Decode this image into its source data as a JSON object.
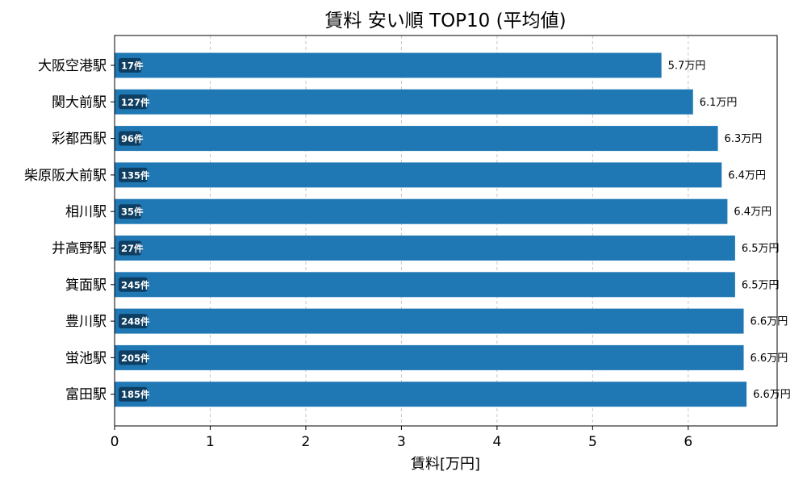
{
  "chart_data": {
    "type": "bar",
    "orientation": "horizontal",
    "title": "賃料 安い順 TOP10 (平均値)",
    "xlabel": "賃料[万円]",
    "ylabel": "",
    "xlim": [
      0,
      6.93
    ],
    "xticks": [
      0,
      1,
      2,
      3,
      4,
      5,
      6
    ],
    "grid": "x-dashed",
    "bar_color": "#1f77b4",
    "badge_color": "#0e3f63",
    "value_suffix": "万円",
    "count_suffix": "件",
    "categories": [
      "大阪空港駅",
      "関大前駅",
      "彩都西駅",
      "柴原阪大前駅",
      "相川駅",
      "井高野駅",
      "箕面駅",
      "豊川駅",
      "蛍池駅",
      "富田駅"
    ],
    "values": [
      5.72,
      6.05,
      6.31,
      6.35,
      6.41,
      6.49,
      6.49,
      6.58,
      6.58,
      6.61
    ],
    "value_labels": [
      "5.7",
      "6.1",
      "6.3",
      "6.4",
      "6.4",
      "6.5",
      "6.5",
      "6.6",
      "6.6",
      "6.6"
    ],
    "counts": [
      17,
      127,
      96,
      135,
      35,
      27,
      245,
      248,
      205,
      185
    ]
  }
}
